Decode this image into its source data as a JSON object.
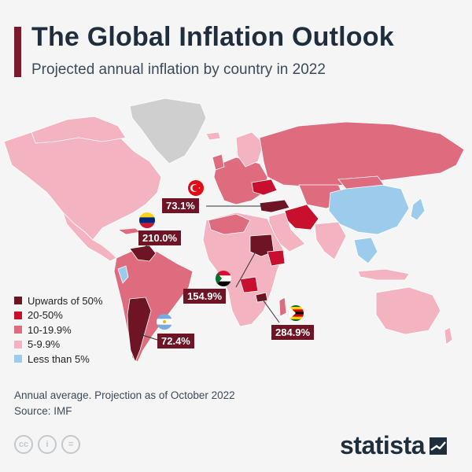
{
  "header": {
    "title": "The Global Inflation Outlook",
    "subtitle": "Projected annual inflation by country in 2022"
  },
  "colors": {
    "title_bar": "#7a1a2c",
    "upwards_50": "#6e1424",
    "r20_50": "#c8102e",
    "r10_19": "#de6c7e",
    "r5_9": "#f4b3c0",
    "lt5": "#9ccbec",
    "no_data": "#cfcfcf",
    "label_bg": "#6e1424"
  },
  "legend": [
    {
      "label": "Upwards of 50%",
      "color": "#6e1424"
    },
    {
      "label": "20-50%",
      "color": "#c8102e"
    },
    {
      "label": "10-19.9%",
      "color": "#de6c7e"
    },
    {
      "label": "5-9.9%",
      "color": "#f4b3c0"
    },
    {
      "label": "Less than 5%",
      "color": "#9ccbec"
    }
  ],
  "callouts": [
    {
      "country": "Turkey",
      "value": "73.1%",
      "flag": "turkey-flag-icon"
    },
    {
      "country": "Venezuela",
      "value": "210.0%",
      "flag": "venezuela-flag-icon"
    },
    {
      "country": "Sudan",
      "value": "154.9%",
      "flag": "sudan-flag-icon"
    },
    {
      "country": "Zimbabwe",
      "value": "284.9%",
      "flag": "zimbabwe-flag-icon"
    },
    {
      "country": "Argentina",
      "value": "72.4%",
      "flag": "argentina-flag-icon"
    }
  ],
  "footer": {
    "note": "Annual average. Projection as of October 2022",
    "source": "Source: IMF",
    "icons": [
      {
        "name": "cc-license-icon",
        "glyph": "cc"
      },
      {
        "name": "attribution-icon",
        "glyph": "i"
      },
      {
        "name": "no-derivatives-icon",
        "glyph": "="
      }
    ],
    "brand": "statista"
  }
}
